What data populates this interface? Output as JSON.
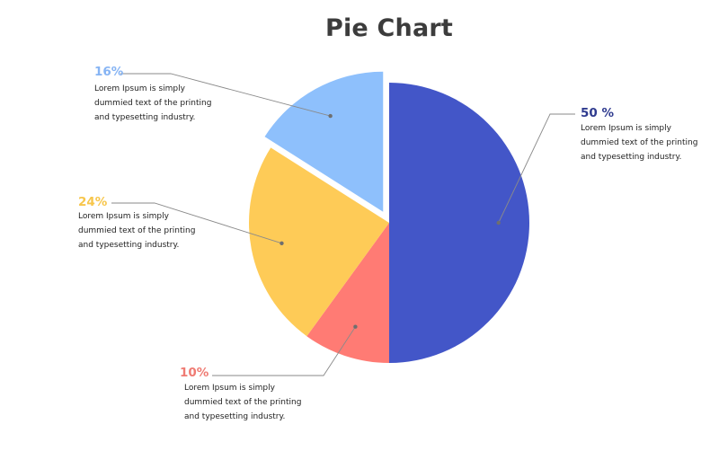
{
  "chart_data": {
    "type": "pie",
    "title": "Pie Chart",
    "start": "12 o'clock",
    "direction": "clockwise",
    "exploded": [
      "16%"
    ],
    "slices": [
      {
        "label": "50 %",
        "value": 50,
        "color": "#4356c8",
        "text_color": "#2f3b8f",
        "description": [
          "Lorem Ipsum is simply",
          "dummied text of the printing",
          "and typesetting industry."
        ]
      },
      {
        "label": "10%",
        "value": 10,
        "color": "#ff7b74",
        "text_color": "#ef7b73",
        "description": [
          "Lorem Ipsum is simply",
          "dummied text of the printing",
          "and typesetting industry."
        ]
      },
      {
        "label": "24%",
        "value": 24,
        "color": "#fecb57",
        "text_color": "#f7c64c",
        "description": [
          "Lorem Ipsum is simply",
          "dummied text of the printing",
          "and typesetting industry."
        ]
      },
      {
        "label": "16%",
        "value": 16,
        "color": "#8ec0fc",
        "text_color": "#86b4f4",
        "description": [
          "Lorem Ipsum is simply",
          "dummied text of the printing",
          "and typesetting industry."
        ]
      }
    ]
  }
}
